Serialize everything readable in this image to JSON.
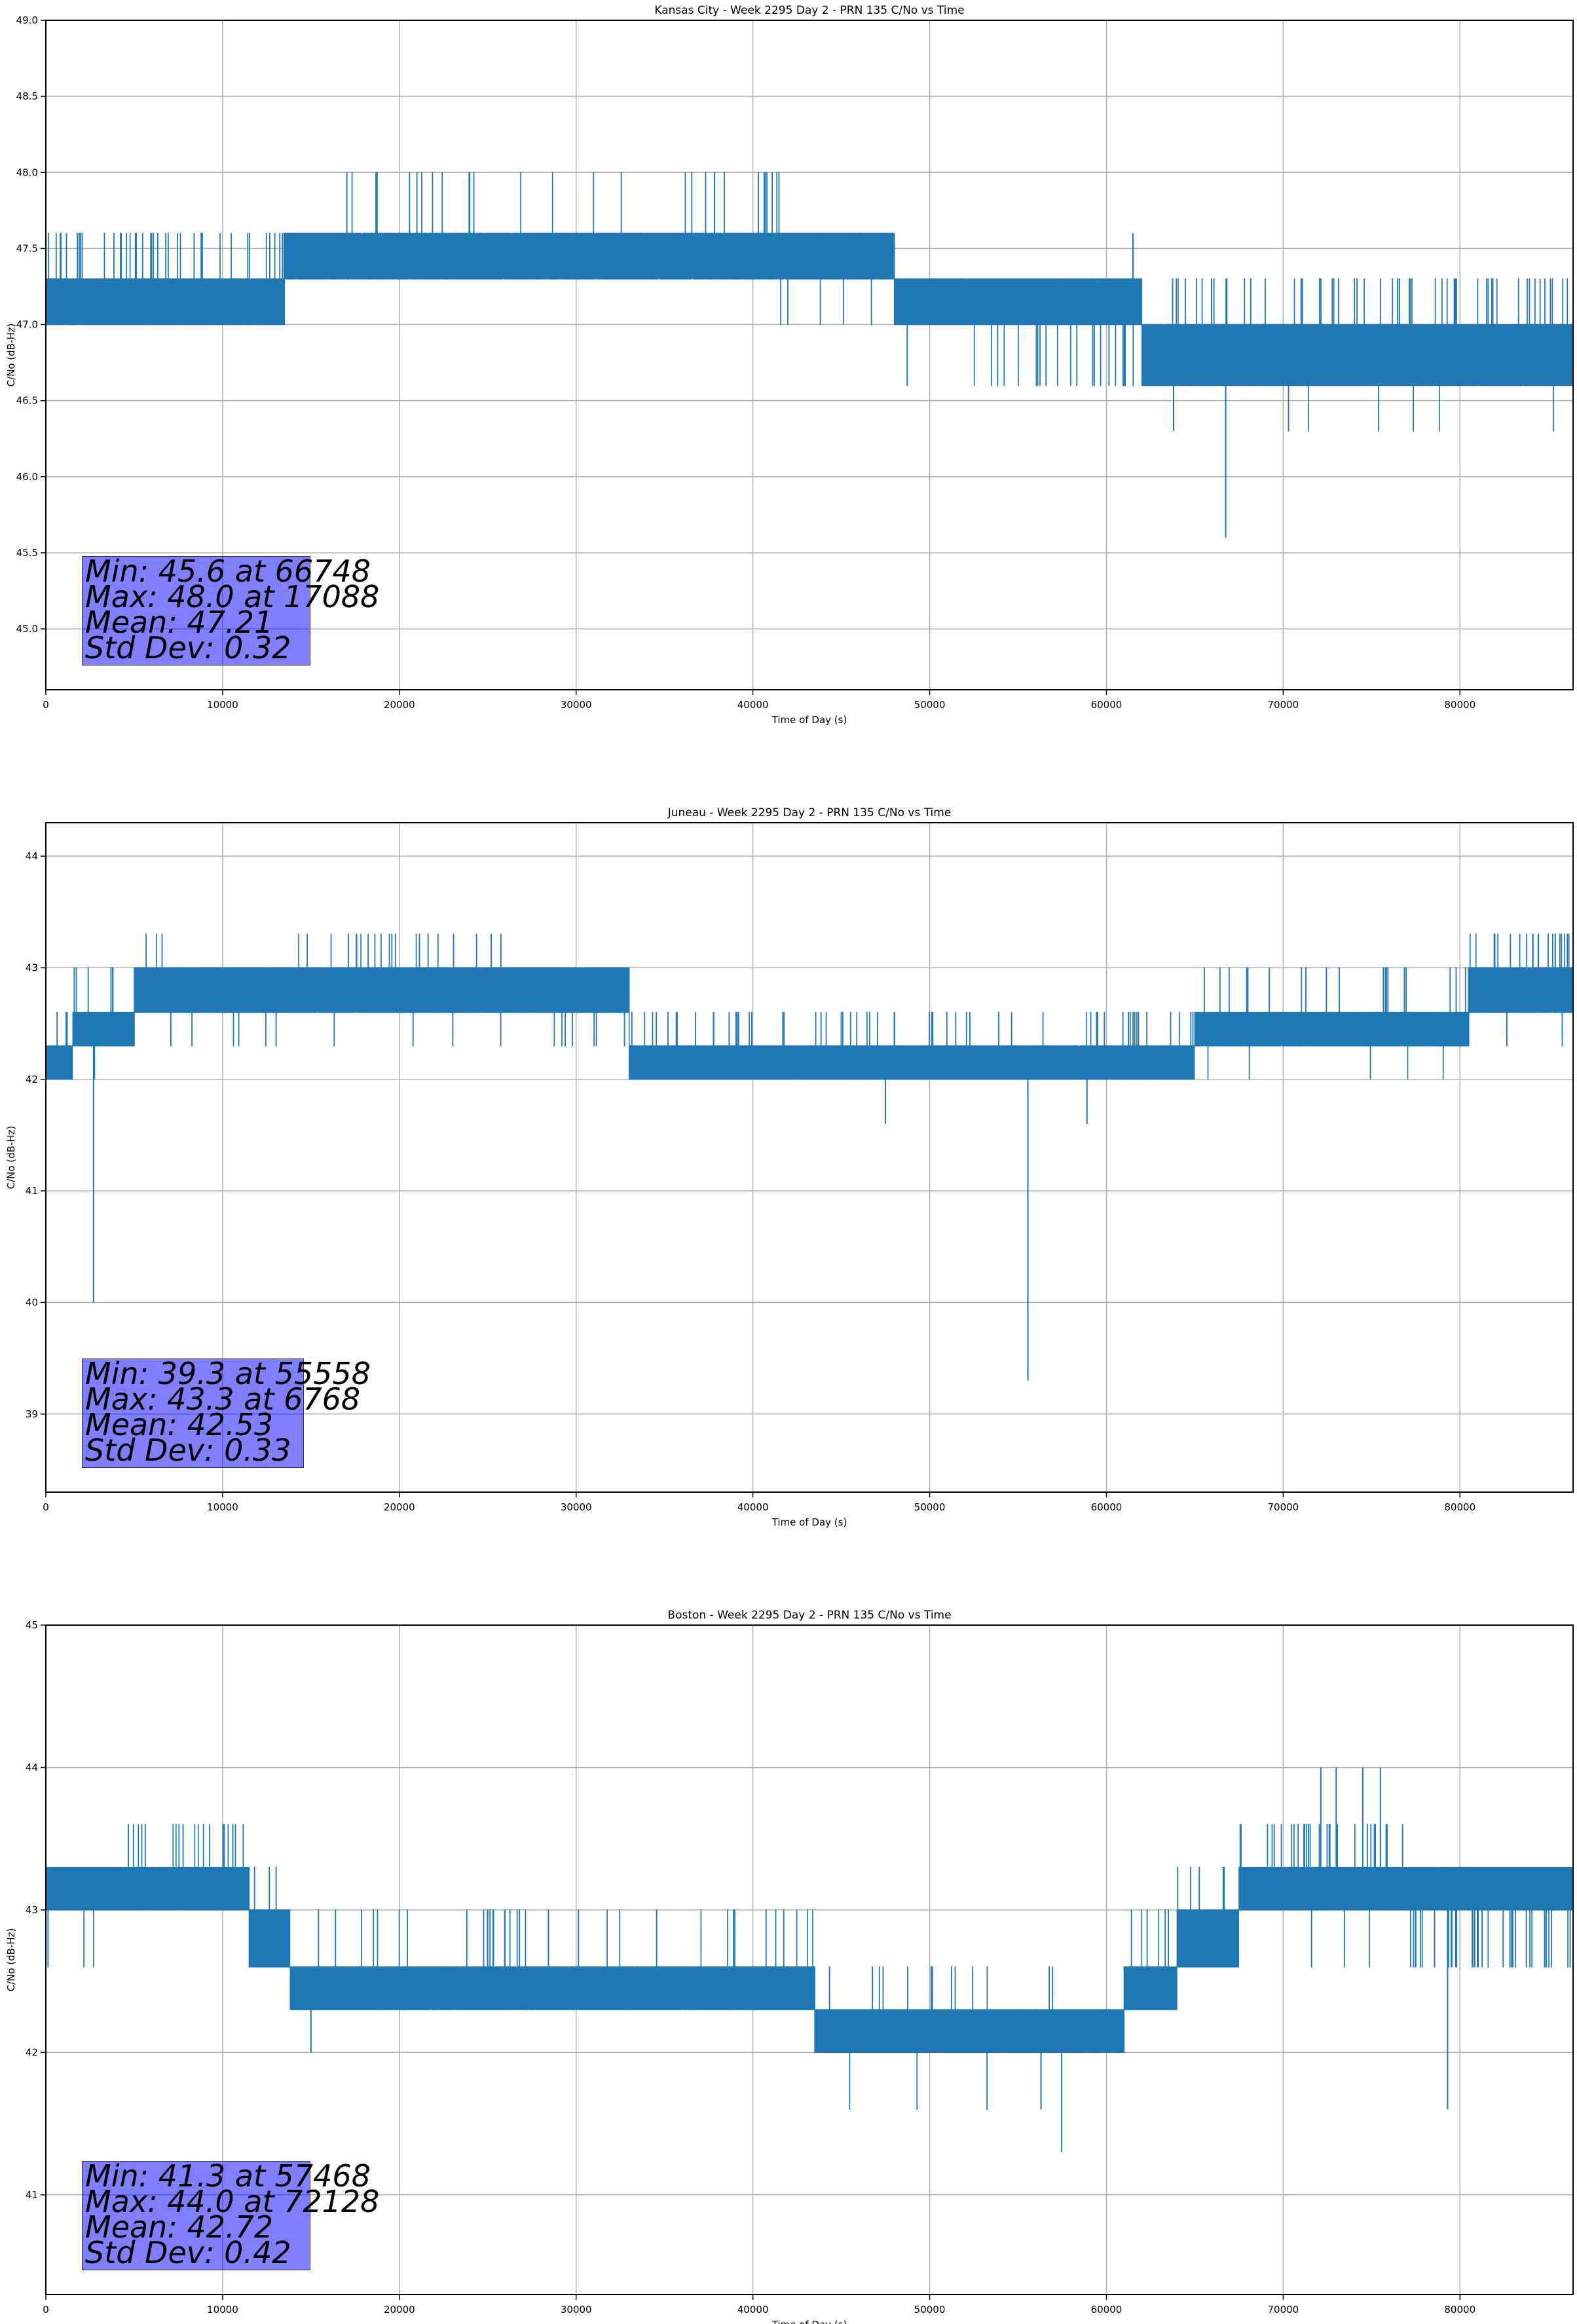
{
  "chart_data": [
    {
      "type": "line",
      "title": "Kansas City - Week 2295 Day 2 - PRN 135 C/No vs Time",
      "xlabel": "Time of Day (s)",
      "ylabel": "C/No (dB-Hz)",
      "xlim": [
        0,
        86400
      ],
      "ylim": [
        44.6,
        49.0
      ],
      "xticks": [
        "0",
        "10000",
        "20000",
        "30000",
        "40000",
        "50000",
        "60000",
        "70000",
        "80000"
      ],
      "yticks": [
        "45.0",
        "45.5",
        "46.0",
        "46.5",
        "47.0",
        "47.5",
        "48.0",
        "48.5",
        "49.0"
      ],
      "ytick_values": [
        45.0,
        45.5,
        46.0,
        46.5,
        47.0,
        47.5,
        48.0,
        48.5,
        49.0
      ],
      "grid": true,
      "color": "#1f77b4",
      "segments": [
        {
          "x0": 0,
          "x1": 13500,
          "lo": 47.0,
          "hi": 47.3,
          "pup": 0.25,
          "up": 47.6,
          "pdn": 0.06,
          "dn": 47.0
        },
        {
          "x0": 13500,
          "x1": 17000,
          "lo": 47.3,
          "hi": 47.6,
          "pup": 0.1,
          "up": 47.6,
          "pdn": 0.0,
          "dn": 47.3
        },
        {
          "x0": 17000,
          "x1": 24500,
          "lo": 47.3,
          "hi": 47.6,
          "pup": 0.28,
          "up": 48.0,
          "pdn": 0.0,
          "dn": 47.3
        },
        {
          "x0": 24500,
          "x1": 36500,
          "lo": 47.3,
          "hi": 47.6,
          "pup": 0.015,
          "up": 48.0,
          "pdn": 0.02,
          "dn": 47.0
        },
        {
          "x0": 36500,
          "x1": 41500,
          "lo": 47.3,
          "hi": 47.6,
          "pup": 0.3,
          "up": 48.0,
          "pdn": 0.0,
          "dn": 47.3
        },
        {
          "x0": 41500,
          "x1": 48000,
          "lo": 47.3,
          "hi": 47.6,
          "pup": 0.0,
          "up": 47.6,
          "pdn": 0.08,
          "dn": 47.0
        },
        {
          "x0": 48000,
          "x1": 52000,
          "lo": 47.0,
          "hi": 47.3,
          "pup": 0.0,
          "up": 47.3,
          "pdn": 0.03,
          "dn": 46.6
        },
        {
          "x0": 52000,
          "x1": 62000,
          "lo": 47.0,
          "hi": 47.3,
          "pup": 0.02,
          "up": 47.6,
          "pdn": 0.35,
          "dn": 46.6
        },
        {
          "x0": 62000,
          "x1": 86400,
          "lo": 46.6,
          "hi": 47.0,
          "pup": 0.3,
          "up": 47.3,
          "pdn": 0.03,
          "dn": 46.3
        }
      ],
      "spikes": [
        {
          "x": 66748,
          "y": 45.6
        },
        {
          "x": 61500,
          "y": 47.6
        },
        {
          "x": 63800,
          "y": 46.3
        }
      ],
      "stats": {
        "min": "Min: 45.6 at 66748",
        "max": "Max: 48.0 at 17088",
        "mean": "Mean: 47.21",
        "std": "Std Dev: 0.32"
      }
    },
    {
      "type": "line",
      "title": "Juneau - Week 2295 Day 2 - PRN 135 C/No vs Time",
      "xlabel": "Time of Day (s)",
      "ylabel": "C/No (dB-Hz)",
      "xlim": [
        0,
        86400
      ],
      "ylim": [
        38.3,
        44.3
      ],
      "xticks": [
        "0",
        "10000",
        "20000",
        "30000",
        "40000",
        "50000",
        "60000",
        "70000",
        "80000"
      ],
      "yticks": [
        "39",
        "40",
        "41",
        "42",
        "43",
        "44"
      ],
      "ytick_values": [
        39,
        40,
        41,
        42,
        43,
        44
      ],
      "grid": true,
      "color": "#1f77b4",
      "segments": [
        {
          "x0": 0,
          "x1": 1500,
          "lo": 42.0,
          "hi": 42.3,
          "pup": 0.3,
          "up": 42.6,
          "pdn": 0.0,
          "dn": 42.0
        },
        {
          "x0": 1500,
          "x1": 5000,
          "lo": 42.3,
          "hi": 42.6,
          "pup": 0.1,
          "up": 43.0,
          "pdn": 0.05,
          "dn": 42.0
        },
        {
          "x0": 5000,
          "x1": 17500,
          "lo": 42.6,
          "hi": 43.0,
          "pup": 0.1,
          "up": 43.3,
          "pdn": 0.06,
          "dn": 42.3
        },
        {
          "x0": 17500,
          "x1": 26000,
          "lo": 42.6,
          "hi": 43.0,
          "pup": 0.3,
          "up": 43.3,
          "pdn": 0.05,
          "dn": 42.3
        },
        {
          "x0": 26000,
          "x1": 33000,
          "lo": 42.6,
          "hi": 43.0,
          "pup": 0.0,
          "up": 43.0,
          "pdn": 0.15,
          "dn": 42.3
        },
        {
          "x0": 33000,
          "x1": 47000,
          "lo": 42.0,
          "hi": 42.3,
          "pup": 0.25,
          "up": 42.6,
          "pdn": 0.0,
          "dn": 42.0
        },
        {
          "x0": 47000,
          "x1": 65000,
          "lo": 42.0,
          "hi": 42.3,
          "pup": 0.2,
          "up": 42.6,
          "pdn": 0.0,
          "dn": 42.0
        },
        {
          "x0": 65000,
          "x1": 80500,
          "lo": 42.3,
          "hi": 42.6,
          "pup": 0.15,
          "up": 43.0,
          "pdn": 0.05,
          "dn": 42.0
        },
        {
          "x0": 80500,
          "x1": 86400,
          "lo": 42.6,
          "hi": 43.0,
          "pup": 0.4,
          "up": 43.3,
          "pdn": 0.03,
          "dn": 42.3
        }
      ],
      "spikes": [
        {
          "x": 55558,
          "y": 39.3
        },
        {
          "x": 2700,
          "y": 40.0
        },
        {
          "x": 47500,
          "y": 41.6
        },
        {
          "x": 58900,
          "y": 41.6
        }
      ],
      "stats": {
        "min": "Min: 39.3 at 55558",
        "max": "Max: 43.3 at 6768",
        "mean": "Mean: 42.53",
        "std": "Std Dev: 0.33"
      }
    },
    {
      "type": "line",
      "title": "Boston - Week 2295 Day 2 - PRN 135 C/No vs Time",
      "xlabel": "Time of Day (s)",
      "ylabel": "C/No (dB-Hz)",
      "xlim": [
        0,
        86400
      ],
      "ylim": [
        40.3,
        45.0
      ],
      "xticks": [
        "0",
        "10000",
        "20000",
        "30000",
        "40000",
        "50000",
        "60000",
        "70000",
        "80000"
      ],
      "yticks": [
        "41",
        "42",
        "43",
        "44",
        "45"
      ],
      "ytick_values": [
        41,
        42,
        43,
        44,
        45
      ],
      "grid": true,
      "color": "#1f77b4",
      "segments": [
        {
          "x0": 0,
          "x1": 4500,
          "lo": 43.0,
          "hi": 43.3,
          "pup": 0.03,
          "up": 43.6,
          "pdn": 0.1,
          "dn": 42.6
        },
        {
          "x0": 4500,
          "x1": 11500,
          "lo": 43.0,
          "hi": 43.3,
          "pup": 0.3,
          "up": 43.6,
          "pdn": 0.0,
          "dn": 43.0
        },
        {
          "x0": 11500,
          "x1": 13800,
          "lo": 42.6,
          "hi": 43.0,
          "pup": 0.1,
          "up": 43.3,
          "pdn": 0.05,
          "dn": 42.3
        },
        {
          "x0": 13800,
          "x1": 43500,
          "lo": 42.3,
          "hi": 42.6,
          "pup": 0.15,
          "up": 43.0,
          "pdn": 0.0,
          "dn": 42.3
        },
        {
          "x0": 43500,
          "x1": 61000,
          "lo": 42.0,
          "hi": 42.3,
          "pup": 0.12,
          "up": 42.6,
          "pdn": 0.03,
          "dn": 41.6
        },
        {
          "x0": 61000,
          "x1": 64000,
          "lo": 42.3,
          "hi": 42.6,
          "pup": 0.2,
          "up": 43.0,
          "pdn": 0.0,
          "dn": 42.3
        },
        {
          "x0": 64000,
          "x1": 67500,
          "lo": 42.6,
          "hi": 43.0,
          "pup": 0.25,
          "up": 43.3,
          "pdn": 0.0,
          "dn": 42.6
        },
        {
          "x0": 67500,
          "x1": 77000,
          "lo": 43.0,
          "hi": 43.3,
          "pup": 0.35,
          "up": 43.6,
          "pdn": 0.05,
          "dn": 42.6
        },
        {
          "x0": 77000,
          "x1": 86400,
          "lo": 43.0,
          "hi": 43.3,
          "pup": 0.0,
          "up": 43.3,
          "pdn": 0.35,
          "dn": 42.6
        }
      ],
      "spikes": [
        {
          "x": 57468,
          "y": 41.3
        },
        {
          "x": 72128,
          "y": 44.0
        },
        {
          "x": 79300,
          "y": 41.6
        },
        {
          "x": 15000,
          "y": 42.0
        },
        {
          "x": 56300,
          "y": 41.6
        },
        {
          "x": 73000,
          "y": 44.0
        },
        {
          "x": 74500,
          "y": 44.0
        },
        {
          "x": 75500,
          "y": 44.0
        }
      ],
      "stats": {
        "min": "Min: 41.3 at 57468",
        "max": "Max: 44.0 at 72128",
        "mean": "Mean: 42.72",
        "std": "Std Dev: 0.42"
      }
    }
  ]
}
